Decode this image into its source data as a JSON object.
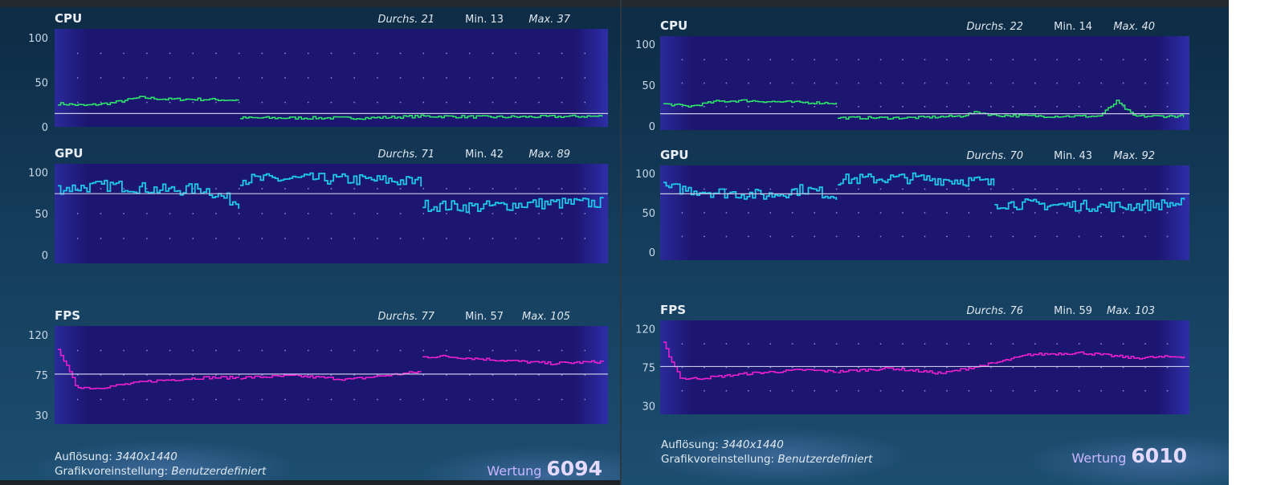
{
  "chart_data": [
    {
      "panel": "left",
      "charts": [
        {
          "type": "line",
          "title": "CPU",
          "color": "#2ee86a",
          "avg_value": 15,
          "ylim": [
            0,
            110
          ],
          "yticks": [
            0,
            50,
            100
          ],
          "stats": {
            "avg_label": "Durchs.",
            "avg": "21",
            "min_label": "Min.",
            "min": "13",
            "max_label": "Max.",
            "max": "37"
          },
          "segments": [
            {
              "x": [
                0,
                15,
                30,
                45,
                60,
                75,
                100
              ],
              "y": [
                26,
                24,
                27,
                33,
                31,
                31,
                30
              ]
            },
            {
              "x": [
                100,
                170,
                200,
                240,
                300
              ],
              "y": [
                10,
                10,
                12,
                11,
                12
              ]
            }
          ],
          "x_max": 300
        },
        {
          "type": "line",
          "title": "GPU",
          "color": "#1ec8e8",
          "avg_value": 74,
          "ylim": [
            -10,
            110
          ],
          "yticks": [
            0,
            50,
            100
          ],
          "stats": {
            "avg_label": "Durchs.",
            "avg": "71",
            "min_label": "Min.",
            "min": "42",
            "max_label": "Max.",
            "max": "89"
          },
          "segments": [
            {
              "x": [
                0,
                30,
                60,
                80,
                90,
                100
              ],
              "y": [
                80,
                84,
                78,
                80,
                70,
                62
              ]
            },
            {
              "x": [
                100,
                140,
                180,
                200
              ],
              "y": [
                91,
                92,
                90,
                88
              ]
            },
            {
              "x": [
                200,
                230,
                260,
                300
              ],
              "y": [
                60,
                58,
                62,
                63
              ]
            }
          ],
          "x_max": 300
        },
        {
          "type": "line",
          "title": "FPS",
          "color": "#f020d0",
          "avg_value": 76,
          "ylim": [
            20,
            130
          ],
          "yticks": [
            30,
            75,
            120
          ],
          "stats": {
            "avg_label": "Durchs.",
            "avg": "77",
            "min_label": "Min.",
            "min": "57",
            "max_label": "Max.",
            "max": "105"
          },
          "segments": [
            {
              "x": [
                0,
                4,
                10,
                20,
                50,
                80,
                100
              ],
              "y": [
                105,
                88,
                62,
                60,
                68,
                72,
                72
              ]
            },
            {
              "x": [
                100,
                130,
                160,
                200
              ],
              "y": [
                72,
                74,
                70,
                79
              ]
            },
            {
              "x": [
                200,
                210,
                240,
                270,
                300
              ],
              "y": [
                95,
                96,
                92,
                88,
                90
              ]
            }
          ],
          "x_max": 300
        }
      ],
      "info": {
        "resolution_label": "Auflösung:",
        "resolution": "3440x1440",
        "preset_label": "Grafikvoreinstellung:",
        "preset": "Benutzerdefiniert"
      },
      "score": {
        "label": "Wertung",
        "value": "6094"
      }
    },
    {
      "panel": "right",
      "charts": [
        {
          "type": "line",
          "title": "CPU",
          "color": "#2ee86a",
          "avg_value": 15,
          "ylim": [
            -5,
            110
          ],
          "yticks": [
            0,
            50,
            100
          ],
          "stats": {
            "avg_label": "Durchs.",
            "avg": "22",
            "min_label": "Min.",
            "min": "14",
            "max_label": "Max.",
            "max": "40"
          },
          "segments": [
            {
              "x": [
                0,
                15,
                30,
                45,
                60,
                75,
                100
              ],
              "y": [
                27,
                24,
                30,
                31,
                30,
                29,
                28
              ]
            },
            {
              "x": [
                100,
                140,
                170,
                180,
                190,
                220,
                250,
                260,
                270,
                300
              ],
              "y": [
                10,
                10,
                12,
                17,
                13,
                12,
                12,
                30,
                12,
                12
              ]
            }
          ],
          "x_max": 300
        },
        {
          "type": "line",
          "title": "GPU",
          "color": "#1ec8e8",
          "avg_value": 74,
          "ylim": [
            -10,
            110
          ],
          "yticks": [
            0,
            50,
            100
          ],
          "stats": {
            "avg_label": "Durchs.",
            "avg": "70",
            "min_label": "Min.",
            "min": "43",
            "max_label": "Max.",
            "max": "92"
          },
          "segments": [
            {
              "x": [
                0,
                30,
                60,
                80,
                90,
                100
              ],
              "y": [
                82,
                76,
                72,
                80,
                76,
                70
              ]
            },
            {
              "x": [
                100,
                140,
                180,
                190
              ],
              "y": [
                92,
                94,
                90,
                86
              ]
            },
            {
              "x": [
                190,
                220,
                260,
                300
              ],
              "y": [
                62,
                60,
                58,
                62
              ]
            }
          ],
          "x_max": 300
        },
        {
          "type": "line",
          "title": "FPS",
          "color": "#f020d0",
          "avg_value": 76,
          "ylim": [
            20,
            130
          ],
          "yticks": [
            30,
            75,
            120
          ],
          "stats": {
            "avg_label": "Durchs.",
            "avg": "76",
            "min_label": "Min.",
            "min": "59",
            "max_label": "Max.",
            "max": "103"
          },
          "segments": [
            {
              "x": [
                0,
                4,
                10,
                20,
                50,
                80,
                100
              ],
              "y": [
                103,
                85,
                62,
                62,
                68,
                72,
                70
              ]
            },
            {
              "x": [
                100,
                130,
                160,
                190
              ],
              "y": [
                70,
                74,
                68,
                80
              ]
            },
            {
              "x": [
                190,
                210,
                240,
                270,
                300
              ],
              "y": [
                80,
                90,
                92,
                86,
                88
              ]
            }
          ],
          "x_max": 300
        }
      ],
      "info": {
        "resolution_label": "Auflösung:",
        "resolution": "3440x1440",
        "preset_label": "Grafikvoreinstellung:",
        "preset": "Benutzerdefiniert"
      },
      "score": {
        "label": "Wertung",
        "value": "6010"
      }
    }
  ]
}
